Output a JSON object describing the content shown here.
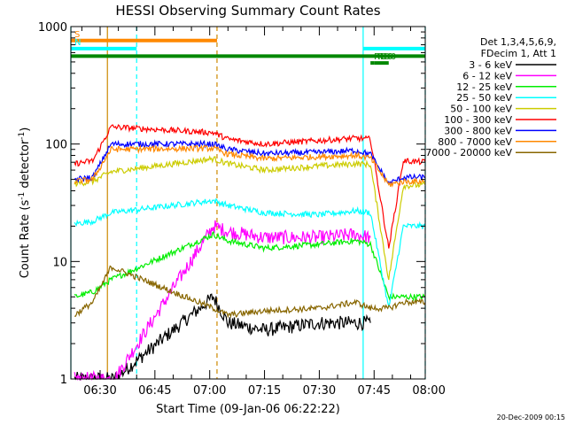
{
  "chart_data": {
    "type": "line",
    "title": "HESSI Observing Summary Count Rates",
    "xlabel": "Start Time (09-Jan-06 06:22:22)",
    "ylabel_main": "Count Rate (s",
    "ylabel_sup1": "-1",
    "ylabel_mid": " detector",
    "ylabel_sup2": "-1",
    "ylabel_end": ")",
    "y_scale": "log",
    "xlim": [
      "06:22",
      "07:59"
    ],
    "ylim": [
      1,
      1000
    ],
    "x_ticks": [
      "06:30",
      "06:45",
      "07:00",
      "07:15",
      "07:30",
      "07:45",
      "08:00"
    ],
    "y_ticks": [
      "1",
      "10",
      "100",
      "1000"
    ],
    "legend_header": [
      "Det 1,3,4,5,6,9,",
      "FDecim 1, Att 1"
    ],
    "series": [
      {
        "name": "3 - 6 keV",
        "color": "#000000",
        "x": [
          "06:23",
          "06:34",
          "07:01",
          "07:05",
          "07:15",
          "07:30",
          "07:40",
          "07:44"
        ],
        "y": [
          1,
          1,
          5,
          3,
          2.6,
          3,
          3,
          3
        ]
      },
      {
        "name": "6 - 12 keV",
        "color": "#ff00ff",
        "x": [
          "06:23",
          "06:34",
          "07:01",
          "07:05",
          "07:15",
          "07:30",
          "07:40",
          "07:44"
        ],
        "y": [
          1,
          1,
          20,
          18,
          16,
          16,
          17,
          16
        ]
      },
      {
        "name": "12 - 25 keV",
        "color": "#00ee00",
        "x": [
          "06:23",
          "06:28",
          "06:33",
          "07:01",
          "07:05",
          "07:15",
          "07:30",
          "07:40",
          "07:44",
          "07:49",
          "07:53",
          "07:59"
        ],
        "y": [
          5,
          5.5,
          7,
          17,
          15,
          13,
          14,
          15,
          14,
          5,
          5,
          5
        ]
      },
      {
        "name": "25 - 50 keV",
        "color": "#00ffff",
        "x": [
          "06:23",
          "06:28",
          "06:33",
          "07:01",
          "07:05",
          "07:15",
          "07:30",
          "07:40",
          "07:44",
          "07:49",
          "07:53",
          "07:59"
        ],
        "y": [
          21,
          22,
          26,
          33,
          30,
          26,
          25,
          27,
          26,
          4,
          20,
          20
        ]
      },
      {
        "name": "50 - 100 keV",
        "color": "#cccc00",
        "x": [
          "06:23",
          "06:28",
          "06:33",
          "07:01",
          "07:05",
          "07:15",
          "07:30",
          "07:40",
          "07:44",
          "07:49",
          "07:53",
          "07:59"
        ],
        "y": [
          46,
          48,
          58,
          75,
          68,
          60,
          65,
          68,
          67,
          7,
          44,
          45
        ]
      },
      {
        "name": "100 - 300 keV",
        "color": "#ff0000",
        "x": [
          "06:23",
          "06:28",
          "06:33",
          "07:01",
          "07:05",
          "07:15",
          "07:30",
          "07:40",
          "07:44",
          "07:49",
          "07:53",
          "07:59"
        ],
        "y": [
          68,
          72,
          140,
          125,
          110,
          100,
          107,
          112,
          110,
          13,
          72,
          70
        ]
      },
      {
        "name": "300 - 800 keV",
        "color": "#0000ff",
        "x": [
          "06:23",
          "06:28",
          "06:33",
          "07:01",
          "07:05",
          "07:15",
          "07:30",
          "07:40",
          "07:44",
          "07:49",
          "07:53",
          "07:59"
        ],
        "y": [
          50,
          52,
          100,
          100,
          90,
          83,
          85,
          88,
          82,
          46,
          52,
          52
        ]
      },
      {
        "name": "800 - 7000 keV",
        "color": "#ff8800",
        "x": [
          "06:23",
          "06:28",
          "06:33",
          "07:01",
          "07:05",
          "07:15",
          "07:30",
          "07:40",
          "07:44",
          "07:49",
          "07:53",
          "07:59"
        ],
        "y": [
          48,
          50,
          90,
          92,
          82,
          75,
          78,
          80,
          76,
          45,
          48,
          48
        ]
      },
      {
        "name": "7000 - 20000 keV",
        "color": "#886600",
        "x": [
          "06:23",
          "06:28",
          "06:33",
          "07:01",
          "07:05",
          "07:15",
          "07:30",
          "07:40",
          "07:44",
          "07:49",
          "07:53",
          "07:59"
        ],
        "y": [
          3.5,
          4.5,
          9,
          4,
          3.5,
          3.8,
          4,
          4.5,
          4,
          4,
          4.5,
          4.5
        ]
      }
    ],
    "status_bars": [
      {
        "label": "S",
        "color": "#ff8800",
        "x_start": "06:22",
        "x_end": "07:02",
        "y_level": 760
      },
      {
        "label": "N",
        "color": "#00ffff",
        "x_start": "06:22",
        "x_end": "06:40",
        "y_level": 650
      },
      {
        "label": "",
        "color": "#00ffff",
        "x_start": "07:42",
        "x_end": "07:59",
        "y_level": 650
      },
      {
        "label": "",
        "color": "#008800",
        "x_start": "06:22",
        "x_end": "07:59",
        "y_level": 560
      },
      {
        "label": "RD0",
        "color": "#008800",
        "x_start": "07:45",
        "x_end": "07:49",
        "y_level": 490
      },
      {
        "label": "RD6",
        "color": "#008800",
        "x_start": "07:44",
        "x_end": "07:45",
        "y_level": 490
      }
    ],
    "vertical_markers": [
      {
        "x": "06:22",
        "color": "#00ffff",
        "style": "solid"
      },
      {
        "x": "06:32",
        "color": "#cc8800",
        "style": "solid"
      },
      {
        "x": "06:40",
        "color": "#00ffff",
        "style": "dashed"
      },
      {
        "x": "07:02",
        "color": "#cc8800",
        "style": "dashed"
      },
      {
        "x": "07:42",
        "color": "#00ffff",
        "style": "solid"
      },
      {
        "x": "07:59",
        "color": "#00ffff",
        "style": "dashed"
      }
    ],
    "grid": false,
    "legend_position": "right",
    "footer": "20-Dec-2009 00:15"
  }
}
